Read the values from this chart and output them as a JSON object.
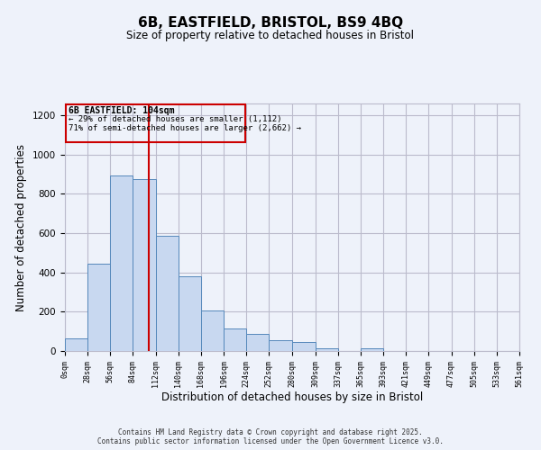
{
  "title": "6B, EASTFIELD, BRISTOL, BS9 4BQ",
  "subtitle": "Size of property relative to detached houses in Bristol",
  "xlabel": "Distribution of detached houses by size in Bristol",
  "ylabel": "Number of detached properties",
  "bar_values": [
    65,
    445,
    895,
    875,
    585,
    380,
    205,
    115,
    85,
    55,
    45,
    15,
    0,
    15,
    0,
    0,
    0,
    0,
    0,
    0
  ],
  "bin_edges": [
    0,
    28,
    56,
    84,
    112,
    140,
    168,
    196,
    224,
    252,
    280,
    309,
    337,
    365,
    393,
    421,
    449,
    477,
    505,
    533,
    561
  ],
  "tick_labels": [
    "0sqm",
    "28sqm",
    "56sqm",
    "84sqm",
    "112sqm",
    "140sqm",
    "168sqm",
    "196sqm",
    "224sqm",
    "252sqm",
    "280sqm",
    "309sqm",
    "337sqm",
    "365sqm",
    "393sqm",
    "421sqm",
    "449sqm",
    "477sqm",
    "505sqm",
    "533sqm",
    "561sqm"
  ],
  "bar_color": "#c8d8f0",
  "bar_edge_color": "#5588bb",
  "vline_x": 104,
  "vline_color": "#cc0000",
  "annotation_title": "6B EASTFIELD: 104sqm",
  "annotation_line1": "← 29% of detached houses are smaller (1,112)",
  "annotation_line2": "71% of semi-detached houses are larger (2,662) →",
  "annotation_box_color": "#cc0000",
  "ylim": [
    0,
    1260
  ],
  "yticks": [
    0,
    200,
    400,
    600,
    800,
    1000,
    1200
  ],
  "grid_color": "#bbbbcc",
  "bg_color": "#eef2fa",
  "footer_line1": "Contains HM Land Registry data © Crown copyright and database right 2025.",
  "footer_line2": "Contains public sector information licensed under the Open Government Licence v3.0."
}
